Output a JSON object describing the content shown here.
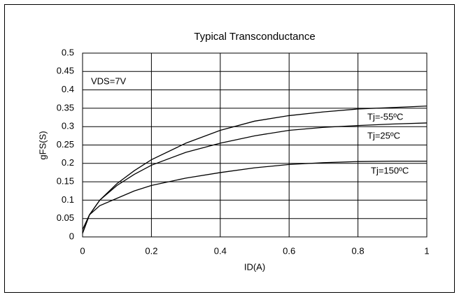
{
  "chart_data": {
    "type": "line",
    "title": "Typical Transconductance",
    "x_label": "ID(A)",
    "y_label": "gFS(S)",
    "annotation": "VDS=7V",
    "x": [
      0,
      0.02,
      0.05,
      0.1,
      0.15,
      0.2,
      0.3,
      0.4,
      0.5,
      0.6,
      0.7,
      0.8,
      0.9,
      1
    ],
    "series": [
      {
        "name": "Tj=-55ºC",
        "color": "#000000",
        "values": [
          0.01,
          0.06,
          0.1,
          0.145,
          0.18,
          0.21,
          0.255,
          0.29,
          0.315,
          0.33,
          0.34,
          0.348,
          0.352,
          0.356
        ]
      },
      {
        "name": "Tj=25ºC",
        "color": "#000000",
        "values": [
          0.01,
          0.06,
          0.1,
          0.14,
          0.17,
          0.195,
          0.23,
          0.255,
          0.275,
          0.29,
          0.298,
          0.303,
          0.307,
          0.31
        ]
      },
      {
        "name": "Tj=150ºC",
        "color": "#000000",
        "values": [
          0.02,
          0.06,
          0.085,
          0.105,
          0.125,
          0.14,
          0.16,
          0.175,
          0.188,
          0.197,
          0.202,
          0.205,
          0.206,
          0.206
        ]
      }
    ],
    "xlim": [
      0,
      1
    ],
    "xticks": [
      0,
      0.2,
      0.4,
      0.6,
      0.8,
      1
    ],
    "ylim": [
      0,
      0.5
    ],
    "yticks": [
      0,
      0.05,
      0.1,
      0.15,
      0.2,
      0.25,
      0.3,
      0.35,
      0.4,
      0.45,
      0.5
    ],
    "grid": true
  }
}
